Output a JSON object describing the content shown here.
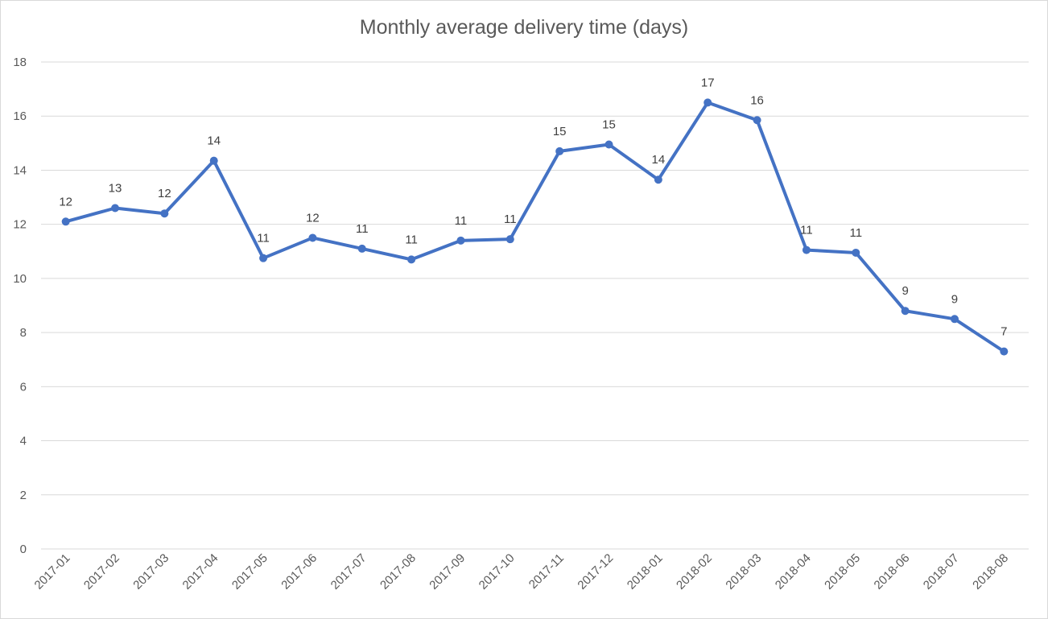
{
  "chart_data": {
    "type": "line",
    "title": "Monthly average delivery time (days)",
    "xlabel": "",
    "ylabel": "",
    "categories": [
      "2017-01",
      "2017-02",
      "2017-03",
      "2017-04",
      "2017-05",
      "2017-06",
      "2017-07",
      "2017-08",
      "2017-09",
      "2017-10",
      "2017-11",
      "2017-12",
      "2018-01",
      "2018-02",
      "2018-03",
      "2018-04",
      "2018-05",
      "2018-06",
      "2018-07",
      "2018-08"
    ],
    "series": [
      {
        "values": [
          12.1,
          12.6,
          12.4,
          14.35,
          10.75,
          11.5,
          11.1,
          10.7,
          11.4,
          11.45,
          14.7,
          14.95,
          13.65,
          16.5,
          15.85,
          11.05,
          10.95,
          8.8,
          8.5,
          7.3
        ],
        "data_labels": [
          "12",
          "13",
          "12",
          "14",
          "11",
          "12",
          "11",
          "11",
          "11",
          "11",
          "15",
          "15",
          "14",
          "17",
          "16",
          "11",
          "11",
          "9",
          "9",
          "7"
        ],
        "color": "#4472C4"
      }
    ],
    "ylim": [
      0,
      18
    ],
    "y_ticks": [
      "0",
      "2",
      "4",
      "6",
      "8",
      "10",
      "12",
      "14",
      "16",
      "18"
    ],
    "grid": true,
    "legend": "none"
  }
}
